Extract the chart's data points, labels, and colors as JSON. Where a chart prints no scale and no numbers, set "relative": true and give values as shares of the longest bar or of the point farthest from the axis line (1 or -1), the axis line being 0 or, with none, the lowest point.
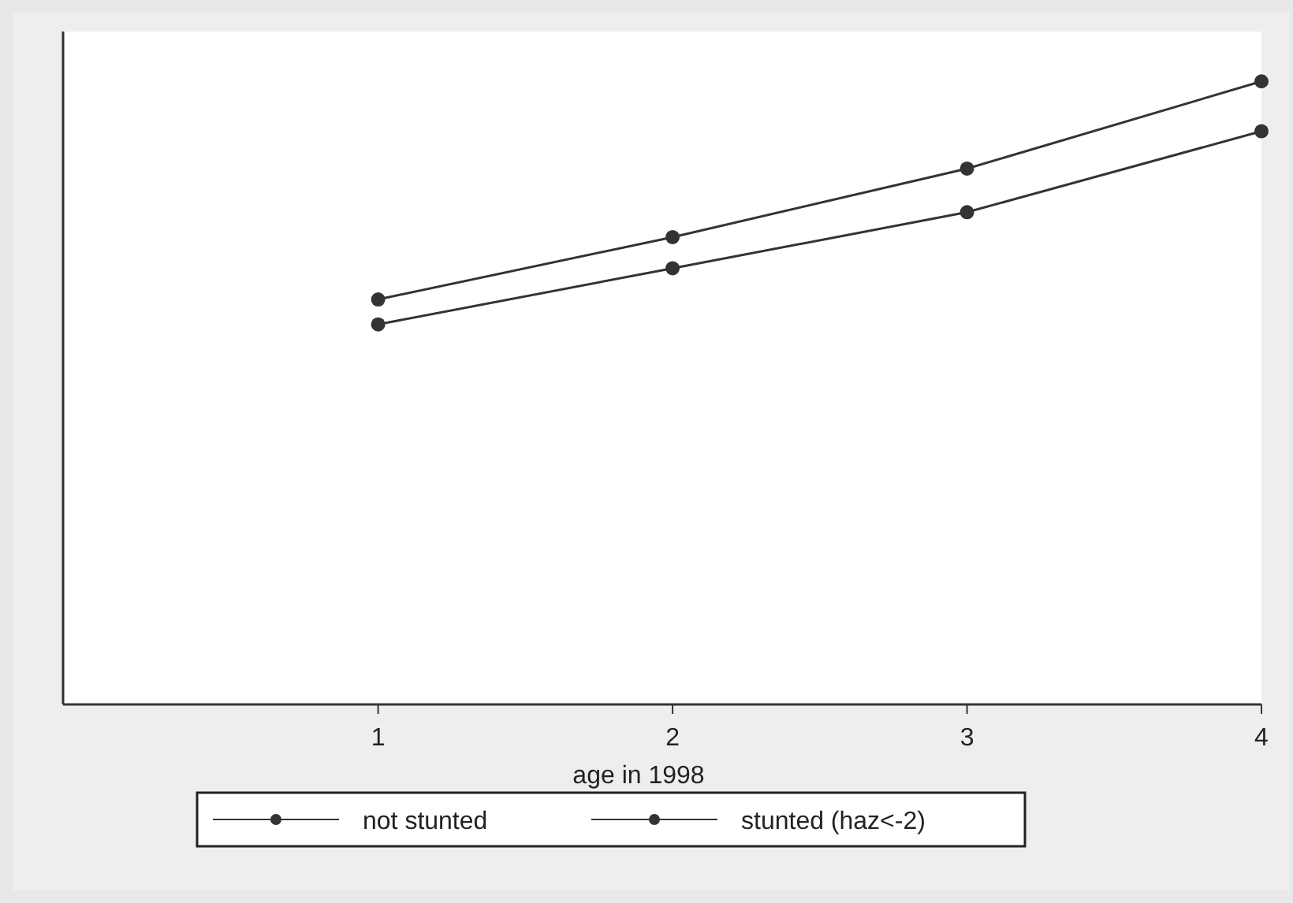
{
  "chart_data": {
    "type": "line",
    "relative": true,
    "xlabel": "age in 1998",
    "x": [
      1,
      2,
      3,
      4
    ],
    "xlim": [
      -0.07,
      4
    ],
    "xticks": [
      1,
      2,
      3,
      4
    ],
    "tick_labels": "x",
    "marker": "circle",
    "line_style": "solid",
    "legend": "bottom",
    "series": [
      {
        "name": "not stunted",
        "color": "#333333",
        "values": [
          0.65,
          0.75,
          0.86,
          1
        ]
      },
      {
        "name": "stunted (haz<-2)",
        "color": "#333333",
        "values": [
          0.61,
          0.7,
          0.79,
          0.92
        ]
      }
    ]
  }
}
